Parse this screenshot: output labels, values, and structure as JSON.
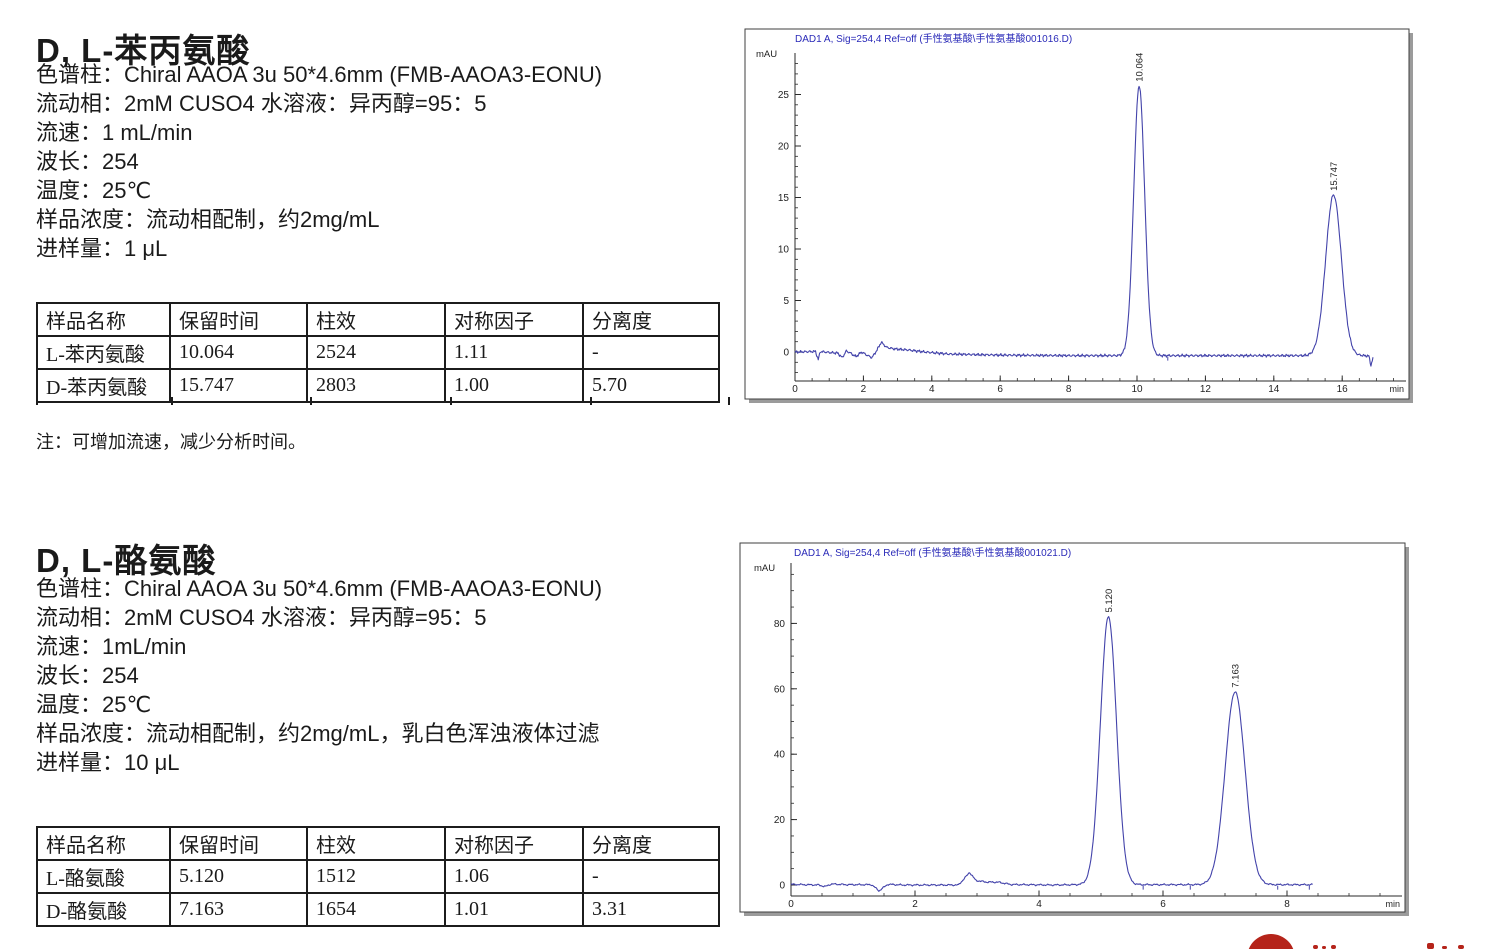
{
  "page": {
    "background": "#ffffff"
  },
  "sections": [
    {
      "title": "D, L-苯丙氨酸",
      "params": [
        "色谱柱：Chiral AAOA 3u 50*4.6mm (FMB-AAOA3-EONU)",
        "流动相：2mM CUSO4 水溶液：异丙醇=95：5",
        "流速：1 mL/min",
        "波长：254",
        "温度：25℃",
        "样品浓度：流动相配制，约2mg/mL",
        "进样量：1 μL"
      ],
      "table": {
        "columns": [
          "样品名称",
          "保留时间",
          "柱效",
          "对称因子",
          "分离度"
        ],
        "rows": [
          [
            "L-苯丙氨酸",
            "10.064",
            "2524",
            "1.11",
            "-"
          ],
          [
            "D-苯丙氨酸",
            "15.747",
            "2803",
            "1.00",
            "5.70"
          ]
        ]
      },
      "note": "注：可增加流速，减少分析时间。"
    },
    {
      "title": "D, L-酪氨酸",
      "params": [
        "色谱柱：Chiral AAOA 3u 50*4.6mm (FMB-AAOA3-EONU)",
        "流动相：2mM CUSO4 水溶液：异丙醇=95：5",
        "流速：1mL/min",
        "波长：254",
        "温度：25℃",
        "样品浓度：流动相配制，约2mg/mL，乳白色浑浊液体过滤",
        "进样量：10 μL"
      ],
      "table": {
        "columns": [
          "样品名称",
          "保留时间",
          "柱效",
          "对称因子",
          "分离度"
        ],
        "rows": [
          [
            "L-酪氨酸",
            "5.120",
            "1512",
            "1.06",
            "-"
          ],
          [
            "D-酪氨酸",
            "7.163",
            "1654",
            "1.01",
            "3.31"
          ]
        ]
      },
      "note": ""
    }
  ],
  "chart_data": [
    {
      "type": "line",
      "title": "DAD1 A, Sig=254,4 Ref=off (手性氨基酸\\手性氨基酸001016.D)",
      "ylabel": "mAU",
      "xlabel": "min",
      "xlim": [
        0,
        18
      ],
      "ylim": [
        -3,
        28
      ],
      "x_ticks": [
        0,
        2,
        4,
        6,
        8,
        10,
        12,
        14,
        16
      ],
      "x_minor_step": 0.5,
      "y_ticks": [
        0,
        5,
        10,
        15,
        20,
        25
      ],
      "y_minor_step": 1,
      "trace_end": 16.9,
      "noise": 0.16,
      "dt": 0.02,
      "peaks": [
        {
          "t": 10.064,
          "height": 26.2,
          "sigma": 0.16,
          "label": "10.064"
        },
        {
          "t": 15.747,
          "height": 15.6,
          "sigma": 0.23,
          "label": "15.747"
        }
      ],
      "baseline_points": [
        [
          0,
          0
        ],
        [
          0.6,
          0.05
        ],
        [
          0.68,
          -0.75
        ],
        [
          0.74,
          0.05
        ],
        [
          1.0,
          -0.05
        ],
        [
          1.25,
          -0.1
        ],
        [
          1.38,
          -0.55
        ],
        [
          1.5,
          0.1
        ],
        [
          1.62,
          -0.1
        ],
        [
          1.78,
          -0.45
        ],
        [
          1.95,
          0
        ],
        [
          2.1,
          -0.3
        ],
        [
          2.25,
          -0.55
        ],
        [
          2.4,
          0.2
        ],
        [
          2.52,
          0.95
        ],
        [
          2.68,
          0.45
        ],
        [
          2.9,
          0.3
        ],
        [
          3.3,
          0.2
        ],
        [
          3.8,
          0
        ],
        [
          4.5,
          -0.2
        ],
        [
          6,
          -0.3
        ],
        [
          8,
          -0.35
        ],
        [
          9.5,
          -0.35
        ],
        [
          10.6,
          -0.35
        ],
        [
          14,
          -0.35
        ],
        [
          16.6,
          -0.35
        ],
        [
          16.78,
          -0.4
        ],
        [
          16.84,
          -1.3
        ],
        [
          16.9,
          -0.6
        ]
      ],
      "integration_marks": [
        10.9
      ],
      "line_color": "#4343aa",
      "title_color": "#2a2ab8"
    },
    {
      "type": "line",
      "title": "DAD1 A, Sig=254,4 Ref=off (手性氨基酸\\手性氨基酸001021.D)",
      "ylabel": "mAU",
      "xlabel": "min",
      "xlim": [
        0,
        9.9
      ],
      "ylim": [
        -6,
        95
      ],
      "x_ticks": [
        0,
        2,
        4,
        6,
        8
      ],
      "x_minor_step": 0.5,
      "y_ticks": [
        0,
        20,
        40,
        60,
        80
      ],
      "y_minor_step": 5,
      "trace_end": 8.42,
      "noise": 0.32,
      "dt": 0.012,
      "peaks": [
        {
          "t": 5.12,
          "height": 82,
          "sigma": 0.13,
          "label": "5.120"
        },
        {
          "t": 7.163,
          "height": 59,
          "sigma": 0.16,
          "label": "7.163"
        }
      ],
      "baseline_points": [
        [
          0,
          0.2
        ],
        [
          0.45,
          0
        ],
        [
          0.55,
          -0.5
        ],
        [
          0.65,
          0.3
        ],
        [
          0.9,
          0.1
        ],
        [
          1.3,
          0.1
        ],
        [
          1.42,
          -1.8
        ],
        [
          1.56,
          0.2
        ],
        [
          1.8,
          0
        ],
        [
          2.7,
          0
        ],
        [
          2.82,
          2.5
        ],
        [
          2.88,
          3.9
        ],
        [
          2.98,
          1.4
        ],
        [
          3.15,
          0.9
        ],
        [
          3.35,
          0.85
        ],
        [
          3.55,
          0.15
        ],
        [
          4.2,
          0
        ],
        [
          4.6,
          0.1
        ],
        [
          8.42,
          0.1
        ]
      ],
      "integration_marks": [
        5.68,
        6.44,
        7.85,
        8.36
      ],
      "line_color": "#4343aa",
      "title_color": "#2a2ab8"
    }
  ],
  "logo": {
    "color": "#b5241a"
  }
}
